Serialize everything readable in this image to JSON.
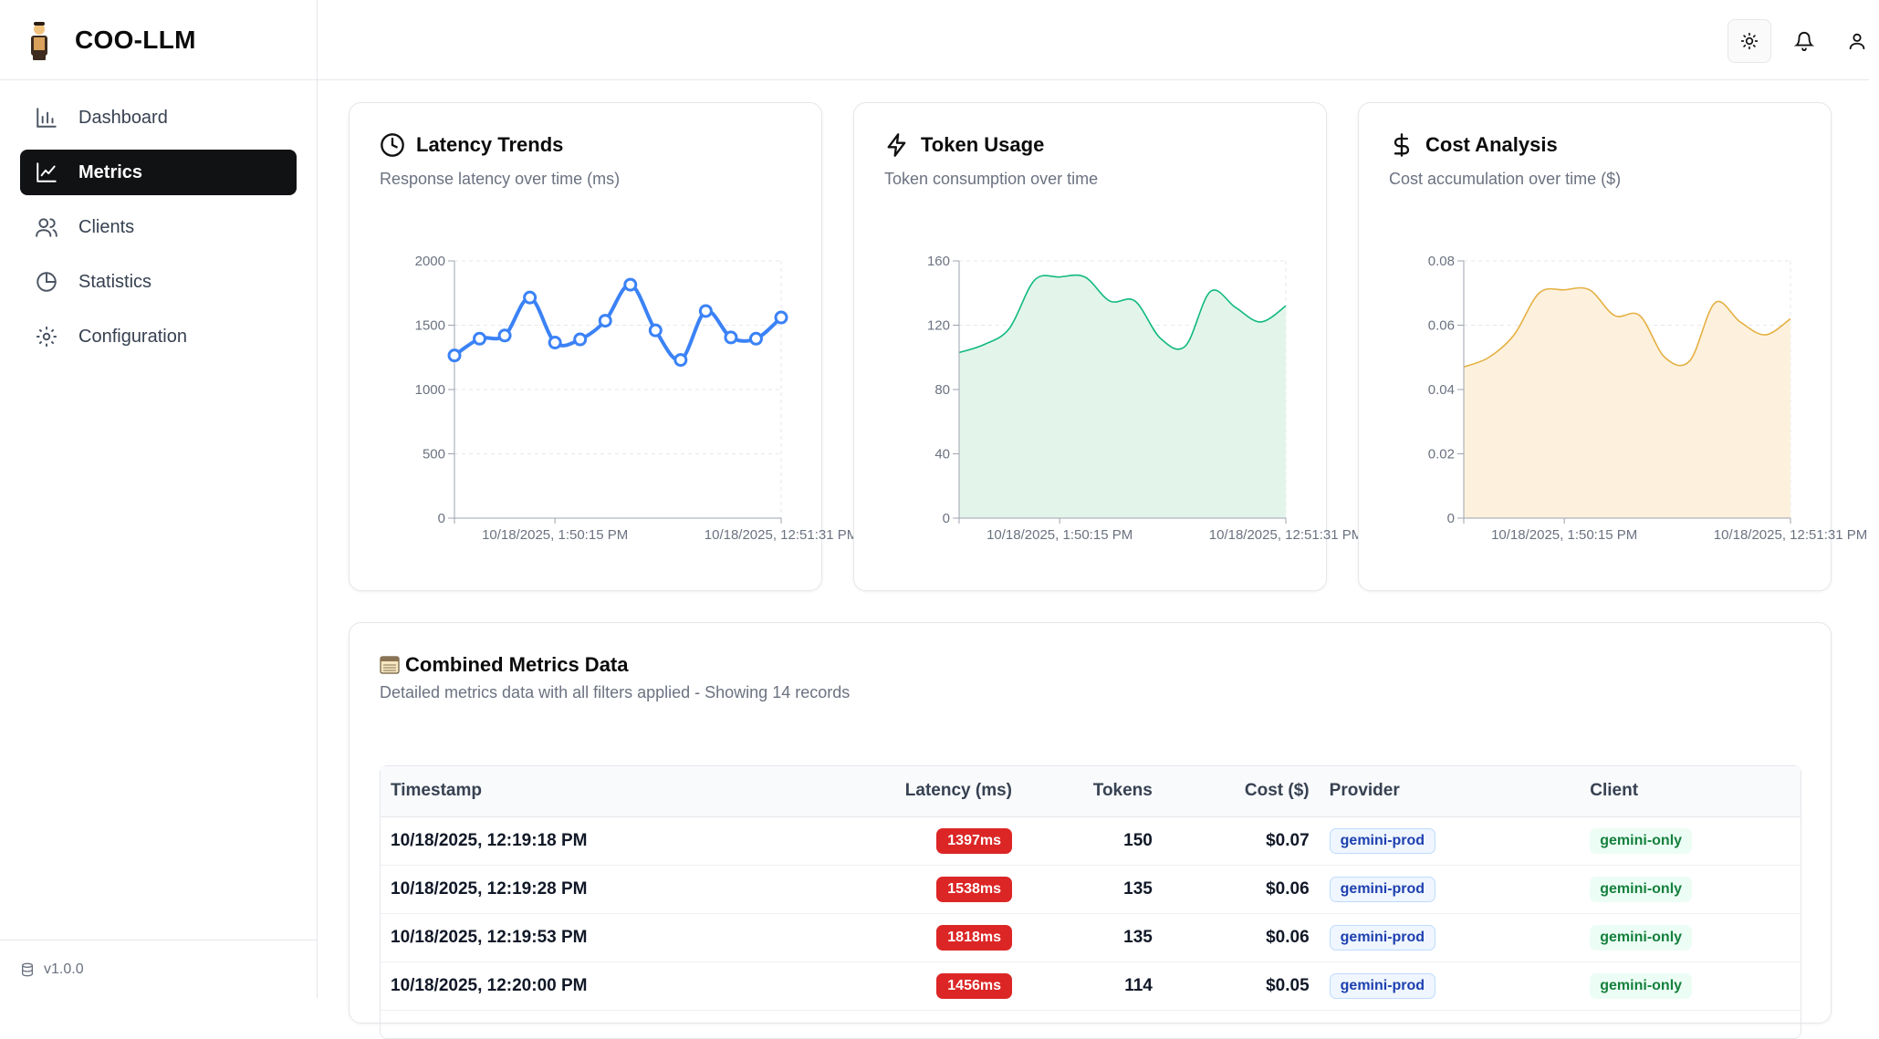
{
  "app": {
    "title": "COO-LLM",
    "version": "v1.0.0"
  },
  "sidebar": {
    "items": [
      {
        "label": "Dashboard",
        "icon": "bar-chart-icon",
        "active": false
      },
      {
        "label": "Metrics",
        "icon": "line-chart-icon",
        "active": true
      },
      {
        "label": "Clients",
        "icon": "users-icon",
        "active": false
      },
      {
        "label": "Statistics",
        "icon": "pie-chart-icon",
        "active": false
      },
      {
        "label": "Configuration",
        "icon": "gear-icon",
        "active": false
      }
    ]
  },
  "topbar": {
    "icons": [
      "sun-icon",
      "bell-icon",
      "user-icon"
    ]
  },
  "cards": {
    "latency": {
      "title": "Latency Trends",
      "subtitle": "Response latency over time (ms)",
      "icon": "clock-icon"
    },
    "tokens": {
      "title": "Token Usage",
      "subtitle": "Token consumption over time",
      "icon": "zap-icon"
    },
    "cost": {
      "title": "Cost Analysis",
      "subtitle": "Cost accumulation over time ($)",
      "icon": "dollar-icon"
    }
  },
  "chart_data": [
    {
      "type": "line",
      "title": "Latency Trends",
      "color": "#3b82f6",
      "ylim": [
        0,
        2000
      ],
      "yticks": [
        "0",
        "500",
        "1000",
        "1500",
        "2000"
      ],
      "xtick_labels": [
        "10/18/2025, 1:50:15 PM",
        "10/18/2025, 12:51:31 PM"
      ],
      "markers": true,
      "grid": true,
      "values": [
        1265,
        1395,
        1420,
        1715,
        1365,
        1390,
        1535,
        1815,
        1460,
        1230,
        1610,
        1405,
        1395,
        1560
      ]
    },
    {
      "type": "area",
      "title": "Token Usage",
      "color": "#10b981",
      "fill": "#e3f5ea",
      "ylim": [
        0,
        160
      ],
      "yticks": [
        "0",
        "40",
        "80",
        "120",
        "160"
      ],
      "xtick_labels": [
        "10/18/2025, 1:50:15 PM",
        "10/18/2025, 12:51:31 PM"
      ],
      "markers": false,
      "grid": true,
      "values": [
        103,
        108,
        118,
        148,
        150,
        150,
        135,
        135,
        112,
        107,
        141,
        131,
        122,
        132
      ]
    },
    {
      "type": "area",
      "title": "Cost Analysis",
      "color": "#e5b042",
      "fill": "#fdf1de",
      "ylim": [
        0,
        0.08
      ],
      "yticks": [
        "0",
        "0.02",
        "0.04",
        "0.06",
        "0.08"
      ],
      "xtick_labels": [
        "10/18/2025, 1:50:15 PM",
        "10/18/2025, 12:51:31 PM"
      ],
      "markers": false,
      "grid": true,
      "values": [
        0.047,
        0.05,
        0.057,
        0.07,
        0.071,
        0.071,
        0.063,
        0.063,
        0.05,
        0.049,
        0.067,
        0.061,
        0.057,
        0.062
      ]
    }
  ],
  "table_card": {
    "title": "Combined Metrics Data",
    "icon": "table-icon",
    "subtitle": "Detailed metrics data with all filters applied - Showing 14 records",
    "headers": [
      "Timestamp",
      "Latency (ms)",
      "Tokens",
      "Cost ($)",
      "Provider",
      "Client"
    ],
    "rows": [
      {
        "timestamp": "10/18/2025, 12:19:18 PM",
        "latency": "1397ms",
        "tokens": "150",
        "cost": "$0.07",
        "provider": "gemini-prod",
        "client": "gemini-only"
      },
      {
        "timestamp": "10/18/2025, 12:19:28 PM",
        "latency": "1538ms",
        "tokens": "135",
        "cost": "$0.06",
        "provider": "gemini-prod",
        "client": "gemini-only"
      },
      {
        "timestamp": "10/18/2025, 12:19:53 PM",
        "latency": "1818ms",
        "tokens": "135",
        "cost": "$0.06",
        "provider": "gemini-prod",
        "client": "gemini-only"
      },
      {
        "timestamp": "10/18/2025, 12:20:00 PM",
        "latency": "1456ms",
        "tokens": "114",
        "cost": "$0.05",
        "provider": "gemini-prod",
        "client": "gemini-only"
      }
    ]
  }
}
